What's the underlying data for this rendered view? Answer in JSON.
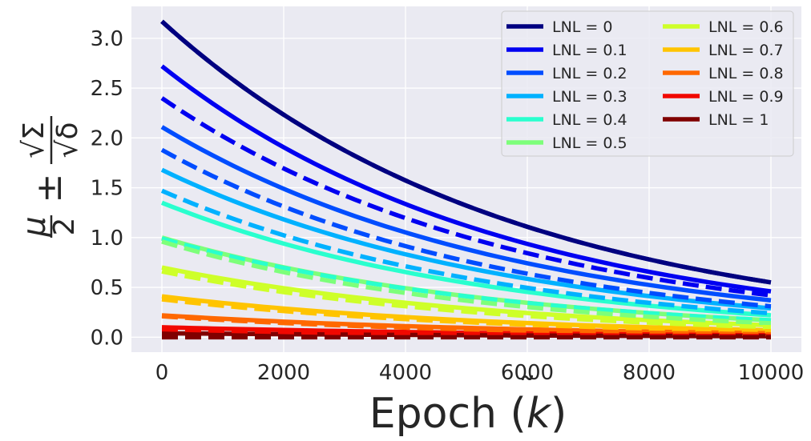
{
  "chart_data": {
    "type": "line",
    "title": "",
    "xlabel": "Epoch (k̃)",
    "xlabel_base": "Epoch (",
    "xlabel_var": "k",
    "xlabel_tilde": "˜",
    "xlabel_close": ")",
    "ylabel": "μ/2 ± √Σ/√δ",
    "ylabel_mu": "μ",
    "ylabel_two": "2",
    "ylabel_pm": "±",
    "ylabel_sigma": "√Σ",
    "ylabel_delta": "√δ",
    "xlim": [
      -500,
      10500
    ],
    "ylim": [
      -0.15,
      3.32
    ],
    "xticks": [
      0,
      2000,
      4000,
      6000,
      8000,
      10000
    ],
    "xtick_labels": [
      "0",
      "2000",
      "4000",
      "6000",
      "8000",
      "10000"
    ],
    "yticks": [
      0.0,
      0.5,
      1.0,
      1.5,
      2.0,
      2.5,
      3.0
    ],
    "ytick_labels": [
      "0.0",
      "0.5",
      "1.0",
      "1.5",
      "2.0",
      "2.5",
      "3.0"
    ],
    "grid": true,
    "legend_position": "top-right",
    "legend_columns": 2,
    "x_range": [
      0,
      10000
    ],
    "series": [
      {
        "name": "LNL = 0",
        "color": "#000080",
        "solid": [
          3.17,
          0.55
        ],
        "dashed": [
          3.17,
          0.55
        ]
      },
      {
        "name": "LNL = 0.1",
        "color": "#0000f1",
        "solid": [
          2.72,
          0.46
        ],
        "dashed": [
          2.4,
          0.42
        ]
      },
      {
        "name": "LNL = 0.2",
        "color": "#004dff",
        "solid": [
          2.11,
          0.37
        ],
        "dashed": [
          1.88,
          0.31
        ]
      },
      {
        "name": "LNL = 0.3",
        "color": "#00b1ff",
        "solid": [
          1.68,
          0.29
        ],
        "dashed": [
          1.47,
          0.24
        ]
      },
      {
        "name": "LNL = 0.4",
        "color": "#29ffce",
        "solid": [
          1.35,
          0.22
        ],
        "dashed": [
          0.99,
          0.17
        ]
      },
      {
        "name": "LNL = 0.5",
        "color": "#7dff7a",
        "solid": [
          1.0,
          0.17
        ],
        "dashed": [
          0.96,
          0.14
        ]
      },
      {
        "name": "LNL = 0.6",
        "color": "#ceff29",
        "solid": [
          0.7,
          0.12
        ],
        "dashed": [
          0.66,
          0.1
        ]
      },
      {
        "name": "LNL = 0.7",
        "color": "#ffc400",
        "solid": [
          0.41,
          0.07
        ],
        "dashed": [
          0.38,
          0.06
        ]
      },
      {
        "name": "LNL = 0.8",
        "color": "#ff6800",
        "solid": [
          0.22,
          0.04
        ],
        "dashed": [
          0.21,
          0.03
        ]
      },
      {
        "name": "LNL = 0.9",
        "color": "#f10800",
        "solid": [
          0.1,
          0.02
        ],
        "dashed": [
          0.08,
          0.01
        ]
      },
      {
        "name": "LNL = 1",
        "color": "#800000",
        "solid": [
          0.04,
          0.01
        ],
        "dashed": [
          0.0,
          0.0
        ]
      }
    ]
  }
}
